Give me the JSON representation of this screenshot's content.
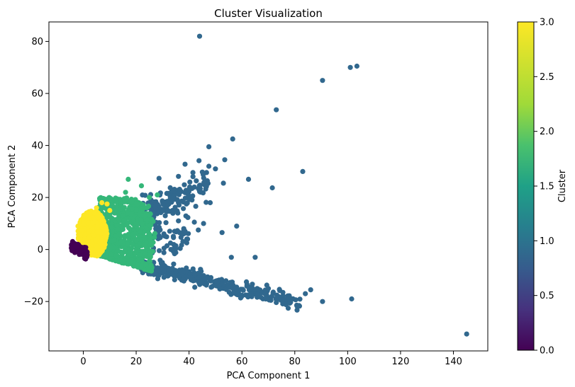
{
  "chart_data": {
    "type": "scatter",
    "title": "Cluster Visualization",
    "xlabel": "PCA Component 1",
    "ylabel": "PCA Component 2",
    "xlim": [
      -13,
      153
    ],
    "ylim": [
      -39,
      87.5
    ],
    "xticks": [
      0,
      20,
      40,
      60,
      80,
      100,
      120,
      140
    ],
    "yticks": [
      -20,
      0,
      20,
      40,
      60,
      80
    ],
    "grid": false,
    "colorbar": {
      "label": "Cluster",
      "range": [
        0.0,
        3.0
      ],
      "ticks": [
        "0.0",
        "0.5",
        "1.0",
        "1.5",
        "2.0",
        "2.5",
        "3.0"
      ],
      "colormap": "viridis"
    },
    "cluster_colors": {
      "0": "#440154",
      "1": "#31688e",
      "2": "#35b779",
      "3": "#fde725"
    },
    "outliers_cluster_1": [
      [
        44,
        82
      ],
      [
        90.5,
        65
      ],
      [
        101,
        70
      ],
      [
        103.5,
        70.5
      ],
      [
        73,
        53.7
      ],
      [
        83,
        30
      ],
      [
        56.5,
        42.5
      ],
      [
        47.5,
        39.5
      ],
      [
        38.5,
        32.8
      ],
      [
        53.5,
        34.5
      ],
      [
        47.5,
        32
      ],
      [
        50,
        31
      ],
      [
        62.5,
        27
      ],
      [
        71.5,
        23.7
      ],
      [
        53,
        25.5
      ],
      [
        48,
        18
      ],
      [
        58,
        9
      ],
      [
        52.5,
        6.5
      ],
      [
        145,
        -32.5
      ],
      [
        101.5,
        -19
      ],
      [
        90.5,
        -20
      ],
      [
        86,
        -15.5
      ],
      [
        84,
        -17
      ],
      [
        77.5,
        -18.5
      ],
      [
        75.5,
        -16.5
      ],
      [
        65,
        -3
      ],
      [
        56,
        -3
      ],
      [
        70,
        -15
      ],
      [
        58,
        -14.5
      ],
      [
        42,
        10.5
      ],
      [
        43.5,
        7.5
      ],
      [
        45.5,
        10
      ],
      [
        39,
        17.5
      ],
      [
        40.5,
        23.5
      ],
      [
        38,
        8
      ],
      [
        36,
        11
      ],
      [
        30.5,
        6
      ],
      [
        33,
        2.5
      ],
      [
        29,
        4.5
      ]
    ]
  }
}
